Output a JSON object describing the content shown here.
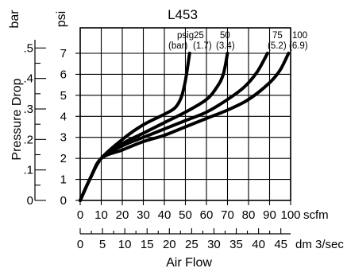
{
  "chart_data": {
    "type": "line",
    "title": "L453",
    "xlabel": "Air Flow",
    "ylabel": "Pressure Drop",
    "x_unit_primary": "scfm",
    "x_unit_secondary": "dm 3/sec",
    "y_unit_primary": "psi",
    "y_unit_secondary": "bar",
    "x_ticks_scfm": [
      "0",
      "10",
      "20",
      "30",
      "40",
      "50",
      "60",
      "70",
      "80",
      "90",
      "100"
    ],
    "x_ticks_dm3s": [
      "0",
      "5",
      "10",
      "15",
      "20",
      "25",
      "30",
      "35",
      "40",
      "45"
    ],
    "y_ticks_psi": [
      "0",
      "1",
      "2",
      "3",
      "4",
      "5",
      "6",
      "7"
    ],
    "y_ticks_bar": [
      "0",
      ".1",
      ".2",
      ".3",
      ".4",
      ".5"
    ],
    "xlim": [
      0,
      100
    ],
    "ylim": [
      0,
      7
    ],
    "grid": true,
    "series_labels": {
      "header_top": "psig",
      "header_bottom": "(bar)",
      "items": [
        {
          "top": "25",
          "bottom": "(1.7)"
        },
        {
          "top": "50",
          "bottom": "(3.4)"
        },
        {
          "top": "75",
          "bottom": "(5.2)"
        },
        {
          "top": "100",
          "bottom": "(6.9)"
        }
      ]
    },
    "series": [
      {
        "inlet_psig": 25,
        "x": [
          0,
          5,
          10,
          20,
          30,
          40,
          45,
          48,
          50,
          52
        ],
        "y": [
          0,
          1.1,
          2.0,
          2.9,
          3.6,
          4.1,
          4.4,
          4.9,
          5.7,
          7.0
        ]
      },
      {
        "inlet_psig": 50,
        "x": [
          0,
          5,
          10,
          20,
          30,
          40,
          50,
          60,
          65,
          68,
          70
        ],
        "y": [
          0,
          1.1,
          2.0,
          2.7,
          3.2,
          3.7,
          4.2,
          4.8,
          5.4,
          6.0,
          7.0
        ]
      },
      {
        "inlet_psig": 75,
        "x": [
          0,
          5,
          10,
          20,
          30,
          40,
          50,
          60,
          70,
          78,
          84,
          89
        ],
        "y": [
          0,
          1.1,
          2.0,
          2.6,
          3.0,
          3.4,
          3.8,
          4.2,
          4.8,
          5.4,
          6.1,
          7.0
        ]
      },
      {
        "inlet_psig": 100,
        "x": [
          0,
          5,
          10,
          20,
          30,
          40,
          50,
          60,
          70,
          80,
          90,
          95,
          99
        ],
        "y": [
          0,
          1.1,
          2.0,
          2.4,
          2.8,
          3.1,
          3.5,
          3.9,
          4.3,
          4.8,
          5.6,
          6.2,
          7.0
        ]
      }
    ]
  }
}
